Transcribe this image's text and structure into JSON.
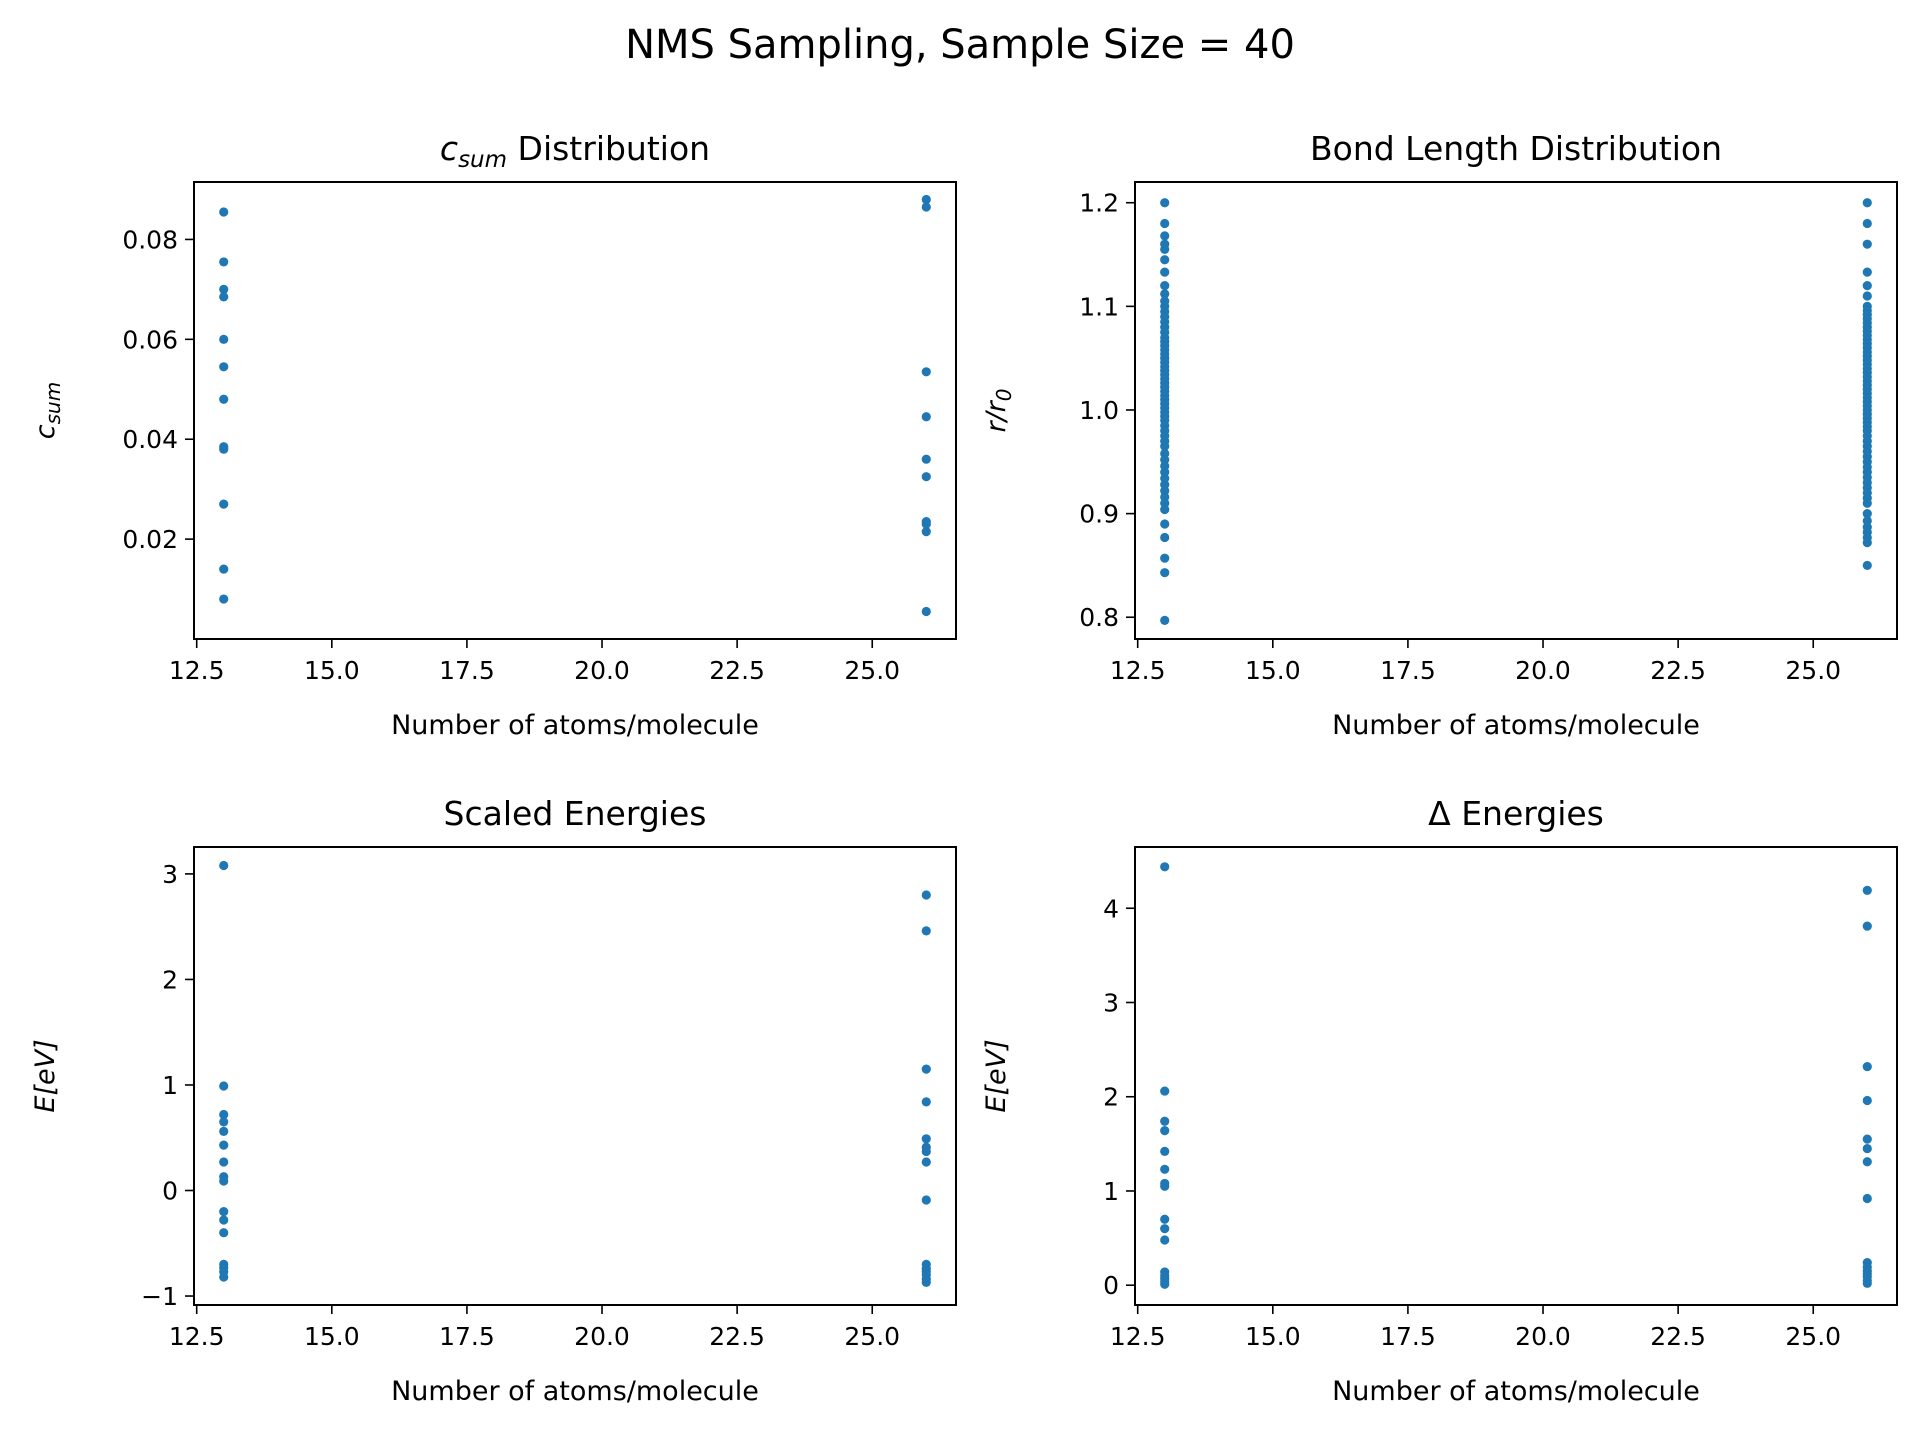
{
  "suptitle": "NMS Sampling, Sample Size = 40",
  "colors": {
    "marker": "#1f77b4",
    "axes": "#000000",
    "background": "#ffffff"
  },
  "chart_data": [
    {
      "type": "scatter",
      "title_italic": "c",
      "title_sub": "sum",
      "title_rest": " Distribution",
      "xlabel": "Number of atoms/molecule",
      "ylabel_italic": "c",
      "ylabel_sub": "sum",
      "xlim": [
        12.45,
        26.55
      ],
      "ylim": [
        0.0,
        0.0915
      ],
      "xticks": [
        "12.5",
        "15.0",
        "17.5",
        "20.0",
        "22.5",
        "25.0"
      ],
      "yticks": [
        "0.02",
        "0.04",
        "0.06",
        "0.08"
      ],
      "series": [
        {
          "x": 13,
          "y": [
            0.0855,
            0.0755,
            0.07,
            0.0685,
            0.06,
            0.0545,
            0.048,
            0.0385,
            0.038,
            0.027,
            0.014,
            0.008
          ]
        },
        {
          "x": 26,
          "y": [
            0.088,
            0.0865,
            0.0535,
            0.0445,
            0.036,
            0.0325,
            0.0235,
            0.023,
            0.0215,
            0.0055
          ]
        }
      ]
    },
    {
      "type": "scatter",
      "title": "Bond Length Distribution",
      "xlabel": "Number of atoms/molecule",
      "ylabel_italic": "r/r",
      "ylabel_sub": "0",
      "xlim": [
        12.45,
        26.55
      ],
      "ylim": [
        0.779,
        1.22
      ],
      "xticks": [
        "12.5",
        "15.0",
        "17.5",
        "20.0",
        "22.5",
        "25.0"
      ],
      "yticks": [
        "0.8",
        "0.9",
        "1.0",
        "1.1",
        "1.2"
      ],
      "series": [
        {
          "x": 13,
          "y": [
            1.2,
            1.18,
            1.168,
            1.16,
            1.155,
            1.145,
            1.133,
            1.12,
            1.112,
            1.105,
            1.1,
            1.095,
            1.09,
            1.085,
            1.08,
            1.075,
            1.07,
            1.066,
            1.062,
            1.058,
            1.054,
            1.05,
            1.046,
            1.042,
            1.038,
            1.034,
            1.03,
            1.026,
            1.022,
            1.018,
            1.014,
            1.01,
            1.006,
            1.002,
            0.998,
            0.994,
            0.99,
            0.985,
            0.98,
            0.975,
            0.97,
            0.965,
            0.958,
            0.952,
            0.946,
            0.94,
            0.934,
            0.928,
            0.922,
            0.916,
            0.91,
            0.904,
            0.89,
            0.877,
            0.857,
            0.843,
            0.797
          ]
        },
        {
          "x": 26,
          "y": [
            1.2,
            1.18,
            1.16,
            1.133,
            1.12,
            1.11,
            1.1,
            1.096,
            1.092,
            1.088,
            1.084,
            1.08,
            1.076,
            1.072,
            1.068,
            1.064,
            1.06,
            1.056,
            1.052,
            1.048,
            1.044,
            1.04,
            1.036,
            1.032,
            1.028,
            1.024,
            1.02,
            1.016,
            1.012,
            1.008,
            1.004,
            1.0,
            0.996,
            0.992,
            0.988,
            0.984,
            0.98,
            0.975,
            0.97,
            0.965,
            0.96,
            0.955,
            0.95,
            0.945,
            0.94,
            0.935,
            0.93,
            0.925,
            0.92,
            0.915,
            0.91,
            0.9,
            0.893,
            0.887,
            0.882,
            0.877,
            0.872,
            0.85
          ]
        }
      ]
    },
    {
      "type": "scatter",
      "title": "Scaled Energies",
      "xlabel": "Number of atoms/molecule",
      "ylabel_italic": "E[eV]",
      "xlim": [
        12.45,
        26.55
      ],
      "ylim": [
        -1.085,
        3.255
      ],
      "xticks": [
        "12.5",
        "15.0",
        "17.5",
        "20.0",
        "22.5",
        "25.0"
      ],
      "yticks": [
        "−1",
        "0",
        "1",
        "2",
        "3"
      ],
      "series": [
        {
          "x": 13,
          "y": [
            3.08,
            0.99,
            0.72,
            0.65,
            0.56,
            0.43,
            0.27,
            0.13,
            0.09,
            -0.2,
            -0.28,
            -0.4,
            -0.7,
            -0.73,
            -0.77,
            -0.82
          ]
        },
        {
          "x": 26,
          "y": [
            2.8,
            2.46,
            1.15,
            0.84,
            0.49,
            0.41,
            0.37,
            0.27,
            -0.09,
            -0.7,
            -0.74,
            -0.77,
            -0.8,
            -0.84,
            -0.87
          ]
        }
      ]
    },
    {
      "type": "scatter",
      "title": "Δ Energies",
      "xlabel": "Number of atoms/molecule",
      "ylabel_italic": "E[eV]",
      "xlim": [
        12.45,
        26.55
      ],
      "ylim": [
        -0.21,
        4.65
      ],
      "xticks": [
        "12.5",
        "15.0",
        "17.5",
        "20.0",
        "22.5",
        "25.0"
      ],
      "yticks": [
        "0",
        "1",
        "2",
        "3",
        "4"
      ],
      "series": [
        {
          "x": 13,
          "y": [
            4.44,
            2.06,
            1.74,
            1.64,
            1.42,
            1.23,
            1.08,
            1.05,
            0.7,
            0.6,
            0.48,
            0.14,
            0.1,
            0.07,
            0.04,
            0.01
          ]
        },
        {
          "x": 26,
          "y": [
            4.19,
            3.81,
            2.32,
            1.96,
            1.55,
            1.45,
            1.31,
            0.92,
            0.24,
            0.19,
            0.15,
            0.12,
            0.09,
            0.05,
            0.02
          ]
        }
      ]
    }
  ]
}
